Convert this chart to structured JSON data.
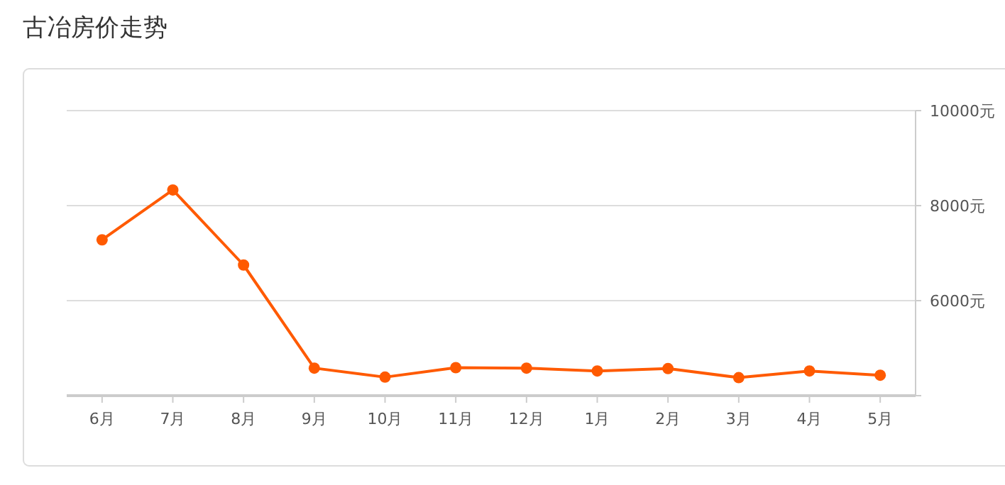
{
  "chart_data": {
    "type": "line",
    "title": "古冶房价走势",
    "categories": [
      "6月",
      "7月",
      "8月",
      "9月",
      "10月",
      "11月",
      "12月",
      "1月",
      "2月",
      "3月",
      "4月",
      "5月"
    ],
    "series": [
      {
        "color": "#ff5a00",
        "values": [
          7280,
          8330,
          6750,
          4580,
          4390,
          4590,
          4580,
          4520,
          4570,
          4380,
          4520,
          4430
        ]
      }
    ],
    "ylim": [
      4000,
      10000
    ],
    "yticks": [
      {
        "value": 4000,
        "label": null
      },
      {
        "value": 6000,
        "label": "6000元"
      },
      {
        "value": 8000,
        "label": "8000元"
      },
      {
        "value": 10000,
        "label": "10000元"
      }
    ],
    "grid": "y",
    "marker": "circle",
    "line_style": "solid"
  }
}
